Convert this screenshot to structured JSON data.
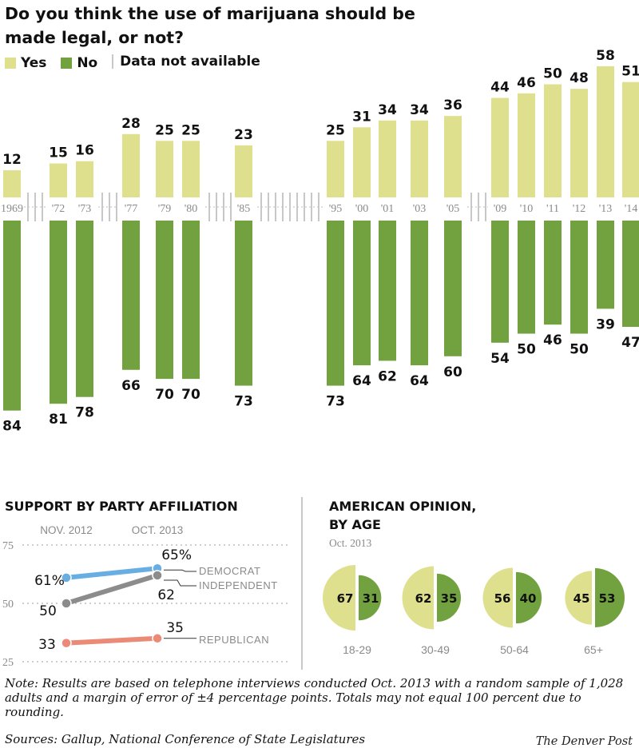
{
  "title": "Do you think the use of marijuana should be made legal, or not?",
  "legend": {
    "yes": "Yes",
    "no": "No",
    "na": "Data not available"
  },
  "colors": {
    "yes": "#dfe08e",
    "no": "#72a23f",
    "republican": "#ec8a78",
    "democrat": "#69aee3",
    "independent": "#8c8c8c",
    "divider": "#c8c8c8",
    "grid": "#bdbdbd",
    "year": "#8a8a8a"
  },
  "chart_data": [
    {
      "type": "bar",
      "title": "Do you think the use of marijuana should be made legal, or not?",
      "categories": [
        "1969",
        "'72",
        "'73",
        "'77",
        "'79",
        "'80",
        "'85",
        "'95",
        "'00",
        "'01",
        "'03",
        "'05",
        "'09",
        "'10",
        "'11",
        "'12",
        "'13",
        "'14"
      ],
      "series": [
        {
          "name": "Yes",
          "values": [
            12,
            15,
            16,
            28,
            25,
            25,
            23,
            25,
            31,
            34,
            34,
            36,
            44,
            46,
            50,
            48,
            58,
            51
          ]
        },
        {
          "name": "No",
          "values": [
            84,
            81,
            78,
            66,
            70,
            70,
            73,
            73,
            64,
            62,
            64,
            60,
            54,
            50,
            46,
            50,
            39,
            47
          ]
        }
      ],
      "legend": [
        "Yes",
        "No",
        "Data not available"
      ],
      "legend_position": "top-left"
    },
    {
      "type": "line",
      "title": "SUPPORT BY PARTY AFFILIATION",
      "x": [
        "NOV. 2012",
        "OCT. 2013"
      ],
      "yticks": [
        75,
        50,
        25
      ],
      "ylim": [
        25,
        75
      ],
      "grid": true,
      "series": [
        {
          "name": "DEMOCRAT",
          "values": [
            61,
            65
          ],
          "labels": [
            "61%",
            "65%"
          ]
        },
        {
          "name": "INDEPENDENT",
          "values": [
            50,
            62
          ],
          "labels": [
            "50",
            "62"
          ]
        },
        {
          "name": "REPUBLICAN",
          "values": [
            33,
            35
          ],
          "labels": [
            "33",
            "35"
          ]
        }
      ]
    },
    {
      "type": "pie",
      "title": "AMERICAN OPINION, BY AGE",
      "subtitle": "Oct. 2013",
      "categories": [
        "18-29",
        "30-49",
        "50-64",
        "65+"
      ],
      "series": [
        {
          "name": "Yes",
          "values": [
            67,
            62,
            56,
            45
          ]
        },
        {
          "name": "No",
          "values": [
            31,
            35,
            40,
            53
          ]
        }
      ]
    }
  ],
  "party": {
    "title": "SUPPORT BY PARTY AFFILIATION"
  },
  "age": {
    "title_line1": "AMERICAN OPINION,",
    "title_line2": "BY AGE",
    "subtitle": "Oct. 2013"
  },
  "note": "Note: Results are based on telephone interviews conducted Oct. 2013 with a random sample of 1,028 adults and a margin of error of ±4 percentage points. Totals may not equal 100 percent due to rounding.",
  "sources": "Sources: Gallup, National Conference of State Legislatures",
  "credit": "The Denver Post"
}
